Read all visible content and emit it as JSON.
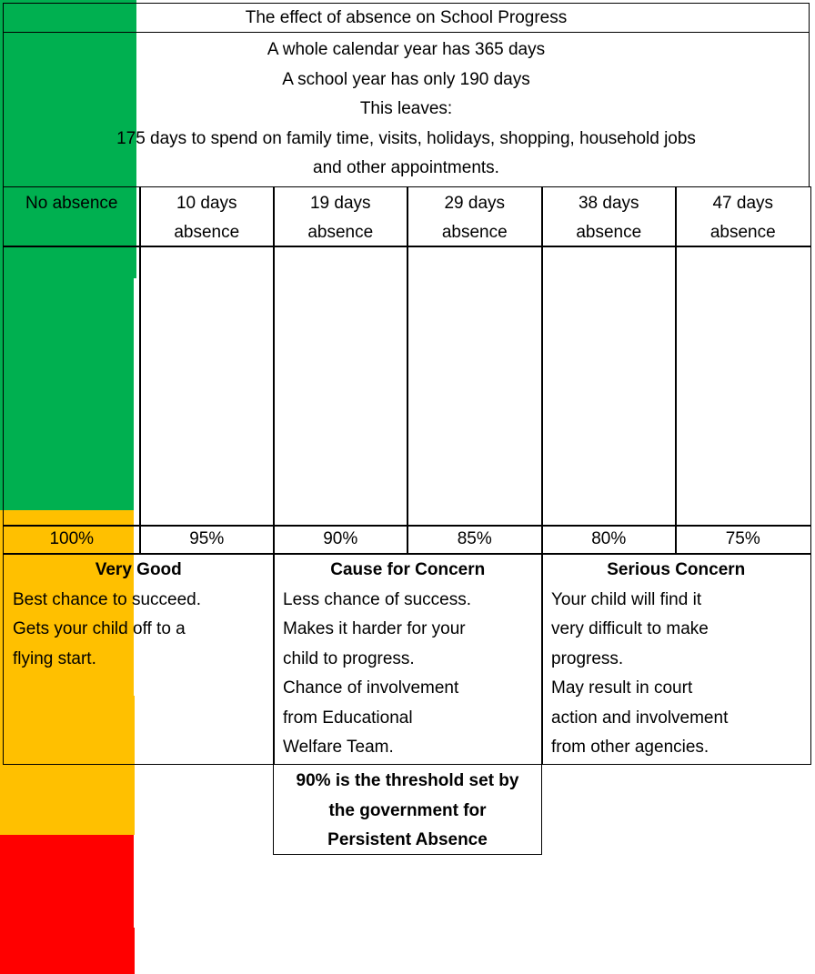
{
  "chart_data": {
    "type": "bar",
    "title": "The effect of absence on School Progress",
    "intro_lines": [
      "A whole calendar year has 365 days",
      "A school year has only 190 days",
      "This leaves:",
      "175 days to spend on family time, visits, holidays, shopping, household jobs",
      "and other appointments."
    ],
    "categories": [
      "No absence",
      "10 days absence",
      "19 days absence",
      "29 days absence",
      "38 days absence",
      "47 days absence"
    ],
    "values": [
      100,
      95,
      90,
      85,
      80,
      75
    ],
    "value_labels": [
      "100%",
      "95%",
      "90%",
      "85%",
      "80%",
      "75%"
    ],
    "colors": [
      "#00b050",
      "#00b050",
      "#ffc000",
      "#ffc000",
      "#ff0000",
      "#ff0000"
    ],
    "ylim": [
      70,
      100
    ],
    "bands": [
      {
        "heading": "Very Good",
        "lines": [
          "Best chance to succeed.",
          "Gets your child off to a",
          "flying start."
        ]
      },
      {
        "heading": "Cause for Concern",
        "lines": [
          "Less chance of success.",
          "Makes it harder for your",
          "child to progress.",
          "Chance of involvement",
          "from Educational",
          "Welfare Team."
        ]
      },
      {
        "heading": "Serious Concern",
        "lines": [
          "Your child will find it",
          "very difficult to make",
          "progress.",
          "May result in court",
          "action and involvement",
          "from other agencies."
        ]
      }
    ],
    "note": "90% is the threshold set by the government for Persistent Absence"
  }
}
